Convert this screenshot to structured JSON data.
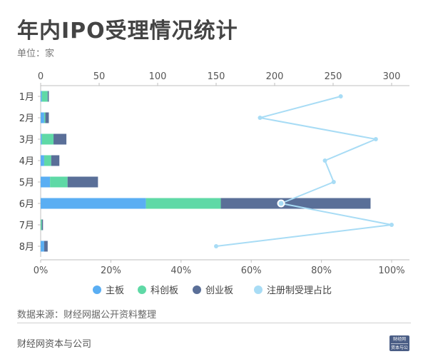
{
  "title": "年内IPO受理情况统计",
  "unit": "单位：家",
  "source": "数据来源：财经网据公开资料整理",
  "footer": "财经网资本与公司",
  "logo": {
    "line1": "财经网",
    "line2": "资本与公司"
  },
  "colors": {
    "main": "#5aaef3",
    "star": "#5fd9a6",
    "gem": "#5a6f98",
    "ratio": "#a8dcf5"
  },
  "chart_data": {
    "type": "bar",
    "orientation": "horizontal",
    "stacked": true,
    "categories": [
      "1月",
      "2月",
      "3月",
      "4月",
      "5月",
      "6月",
      "7月",
      "8月"
    ],
    "series": [
      {
        "name": "主板",
        "axis": "top",
        "values": [
          1,
          3,
          1,
          3,
          8,
          90,
          0,
          3
        ]
      },
      {
        "name": "科创板",
        "axis": "top",
        "values": [
          5,
          1,
          10,
          6,
          15,
          64,
          1,
          0
        ]
      },
      {
        "name": "创业板",
        "axis": "top",
        "values": [
          1,
          3,
          11,
          7,
          26,
          128,
          1,
          3
        ]
      },
      {
        "name": "注册制受理占比",
        "type": "line",
        "axis": "bottom",
        "values": [
          85.5,
          62.5,
          95.5,
          81,
          83.5,
          68.5,
          100,
          50
        ]
      }
    ],
    "top_axis": {
      "ticks": [
        0,
        50,
        100,
        150,
        200,
        250,
        300
      ],
      "range": [
        0,
        300
      ]
    },
    "bottom_axis": {
      "ticks": [
        "0%",
        "20%",
        "40%",
        "60%",
        "80%",
        "100%"
      ],
      "range": [
        0,
        100
      ]
    },
    "legend_position": "bottom"
  }
}
